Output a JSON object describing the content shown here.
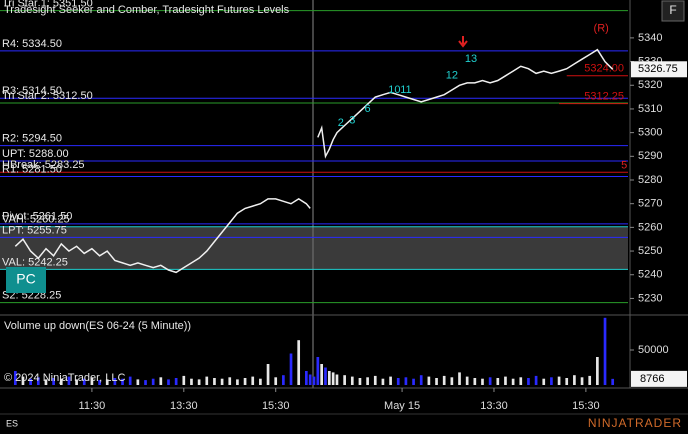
{
  "chart_data": {
    "type": "line",
    "title": "Tradesight Seeker and Comber, Tradesight Futures Levels",
    "volume_title": "Volume up down(ES 06-24 (5 Minute))",
    "copyright": "© 2024 NinjaTrader, LLC",
    "instrument": "ES",
    "logo": "NINJATRADER",
    "button": "F",
    "badge": "PC",
    "x": [
      4,
      6,
      8,
      10,
      12,
      14,
      16,
      18,
      20,
      22,
      24,
      26,
      28,
      30,
      32,
      34,
      36,
      38,
      40,
      42,
      44,
      46,
      48,
      50,
      52,
      54,
      56,
      58,
      60,
      62,
      64,
      66,
      68,
      70,
      72,
      74,
      76,
      78,
      80,
      81,
      82,
      83,
      84,
      85,
      86,
      87,
      88,
      90,
      92,
      94,
      96,
      98,
      100,
      102,
      104,
      106,
      108,
      110,
      112,
      114,
      116,
      118,
      120,
      122,
      124,
      126,
      128,
      130,
      132,
      134,
      136,
      138,
      140,
      142,
      144,
      146,
      148,
      150,
      152,
      154,
      156,
      158,
      160
    ],
    "series": [
      {
        "name": "Price",
        "color": "#f0f0f0",
        "values": [
          5252,
          5255,
          5250,
          5247,
          5251,
          5248,
          5253,
          5250,
          5252,
          5249,
          5251,
          5248,
          5250,
          5246,
          5245,
          5244,
          5245,
          5244,
          5243,
          5244,
          5242,
          5241,
          5243,
          5245,
          5247,
          5250,
          5254,
          5258,
          5262,
          5266,
          5268,
          5269,
          5270,
          5272,
          5272,
          5271,
          5270,
          5272,
          5270,
          5268,
          null,
          5298,
          5302,
          5290,
          5293,
          5297,
          5300,
          5303,
          5306,
          5309,
          5312,
          5315,
          5316,
          5317,
          5316,
          5315,
          5314,
          5313,
          5314,
          5315,
          5316,
          5318,
          5320,
          5321,
          5321,
          5322,
          5321,
          5322,
          5324,
          5326,
          5328,
          5327,
          5325,
          5326,
          5325,
          5326,
          5327,
          5329,
          5331,
          5333,
          5335,
          5330,
          5326.75
        ]
      },
      {
        "name": "Volume",
        "axis": "volume",
        "color": "#2a2aff",
        "up_color": "#e8e8e8",
        "values": [
          20000,
          12000,
          9000,
          11000,
          8000,
          10000,
          9000,
          12000,
          8000,
          9000,
          11000,
          7000,
          8000,
          10000,
          9000,
          12000,
          8000,
          7000,
          9000,
          11000,
          8000,
          10000,
          13000,
          9000,
          8000,
          12000,
          10000,
          9000,
          11000,
          8000,
          10000,
          12000,
          9000,
          30000,
          11000,
          14000,
          45000,
          64000,
          20000,
          15000,
          12000,
          40000,
          30000,
          25000,
          20000,
          18000,
          15000,
          14000,
          12000,
          10000,
          11000,
          13000,
          9000,
          12000,
          10000,
          11000,
          9000,
          14000,
          12000,
          10000,
          13000,
          11000,
          18000,
          12000,
          10000,
          9000,
          11000,
          10000,
          12000,
          9000,
          11000,
          10000,
          13000,
          9000,
          11000,
          12000,
          10000,
          14000,
          11000,
          13000,
          40000,
          96000,
          8766
        ]
      }
    ],
    "last_price": 5326.75,
    "xlim": [
      0,
      164
    ],
    "xticks": [
      {
        "value": 24,
        "label": "11:30"
      },
      {
        "value": 48,
        "label": "13:30"
      },
      {
        "value": 72,
        "label": "15:30"
      },
      {
        "value": 105,
        "label": "May 15"
      },
      {
        "value": 129,
        "label": "13:30"
      },
      {
        "value": 153,
        "label": "15:30"
      }
    ],
    "ylim": [
      5223,
      5356
    ],
    "yticks": [
      5230,
      5240,
      5250,
      5260,
      5270,
      5280,
      5290,
      5300,
      5310,
      5320,
      5330,
      5340
    ],
    "volume_ylim": [
      0,
      100000
    ],
    "volume_yticks": [
      50000
    ],
    "levels": [
      {
        "label": "Tri Star 1: 5351.50",
        "value": 5351.5,
        "color": "#2a9d2a"
      },
      {
        "label": "R4: 5334.50",
        "value": 5334.5,
        "color": "#2a2aff"
      },
      {
        "label": "R3: 5314.50",
        "value": 5314.5,
        "color": "#2a2aff"
      },
      {
        "label": "Tri Star 2: 5312.50",
        "value": 5312.5,
        "color": "#2a9d2a"
      },
      {
        "label": "R2: 5294.50",
        "value": 5294.5,
        "color": "#2a2aff"
      },
      {
        "label": "UPT: 5288.00",
        "value": 5288.0,
        "color": "#2a2aff"
      },
      {
        "label": "HBreak: 5283.25",
        "value": 5283.25,
        "color": "#d01010"
      },
      {
        "label": "R1: 5281.50",
        "value": 5281.5,
        "color": "#2a2aff"
      },
      {
        "label": "Pivot: 5261.50",
        "value": 5261.5,
        "color": "#2a2aff"
      },
      {
        "label": "VAH: 5260.25",
        "value": 5260.25,
        "color": "#20d0d0"
      },
      {
        "label": "LPT: 5255.75",
        "value": 5255.75,
        "color": "#2a2aff"
      },
      {
        "label": "VAL: 5242.25",
        "value": 5242.25,
        "color": "#20d0d0"
      },
      {
        "label": "S2: 5228.25",
        "value": 5228.25,
        "color": "#2a9d2a"
      },
      {
        "label": "5312.25",
        "value": 5312.25,
        "color": "#d01010",
        "start": 146
      },
      {
        "label": "5324.00",
        "value": 5324.0,
        "color": "#d01010",
        "start": 148
      }
    ],
    "annotations": [
      {
        "text": "2",
        "x": 89,
        "y": 5304,
        "color": "#20d0d0"
      },
      {
        "text": "3",
        "x": 92,
        "y": 5305,
        "color": "#20d0d0"
      },
      {
        "text": "6",
        "x": 96,
        "y": 5310,
        "color": "#20d0d0"
      },
      {
        "text": "10",
        "x": 103,
        "y": 5318,
        "color": "#20d0d0"
      },
      {
        "text": "11",
        "x": 106,
        "y": 5318,
        "color": "#20d0d0"
      },
      {
        "text": "12",
        "x": 118,
        "y": 5324,
        "color": "#20d0d0"
      },
      {
        "text": "13",
        "x": 123,
        "y": 5331,
        "color": "#20d0d0"
      },
      {
        "text": "(R)",
        "x": 157,
        "y": 5344,
        "color": "#e02020"
      },
      {
        "text": "5",
        "x": 163,
        "y": 5286,
        "color": "#e02020"
      }
    ]
  }
}
